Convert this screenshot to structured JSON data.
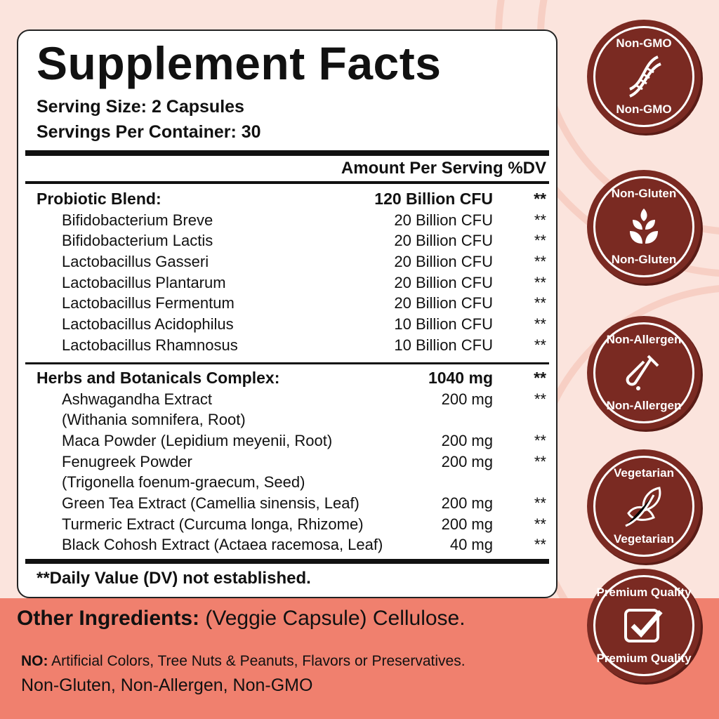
{
  "title": "Supplement Facts",
  "serving_size": "Serving Size: 2 Capsules",
  "servings_per_container": "Servings Per Container: 30",
  "header": {
    "amount": "Amount Per Serving",
    "dv": "%DV"
  },
  "probiotic": [
    {
      "name": "Probiotic Blend:",
      "amount": "120 Billion CFU",
      "dv": "**",
      "bold": true
    },
    {
      "name": "Bifidobacterium Breve",
      "amount": "20 Billion CFU",
      "dv": "**"
    },
    {
      "name": "Bifidobacterium Lactis",
      "amount": "20 Billion CFU",
      "dv": "**"
    },
    {
      "name": "Lactobacillus Gasseri",
      "amount": "20 Billion CFU",
      "dv": "**"
    },
    {
      "name": "Lactobacillus Plantarum",
      "amount": "20 Billion CFU",
      "dv": "**"
    },
    {
      "name": "Lactobacillus Fermentum",
      "amount": "20 Billion CFU",
      "dv": "**"
    },
    {
      "name": "Lactobacillus Acidophilus",
      "amount": "10 Billion CFU",
      "dv": "**"
    },
    {
      "name": "Lactobacillus Rhamnosus",
      "amount": "10 Billion CFU",
      "dv": "**"
    }
  ],
  "herbs": [
    {
      "name": "Herbs and Botanicals Complex:",
      "amount": "1040 mg",
      "dv": "**",
      "bold": true
    },
    {
      "name": "Ashwagandha Extract",
      "amount": "200 mg",
      "dv": "**"
    },
    {
      "name": "(Withania somnifera, Root)",
      "amount": "",
      "dv": ""
    },
    {
      "name": "Maca Powder (Lepidium meyenii, Root)",
      "amount": "200 mg",
      "dv": "**"
    },
    {
      "name": "Fenugreek Powder",
      "amount": "200 mg",
      "dv": "**"
    },
    {
      "name": "(Trigonella foenum-graecum, Seed)",
      "amount": "",
      "dv": ""
    },
    {
      "name": "Green Tea Extract (Camellia sinensis, Leaf)",
      "amount": "200 mg",
      "dv": "**"
    },
    {
      "name": "Turmeric Extract (Curcuma longa, Rhizome)",
      "amount": "200 mg",
      "dv": "**"
    },
    {
      "name": "Black Cohosh Extract (Actaea racemosa, Leaf)",
      "amount": "40 mg",
      "dv": "**"
    }
  ],
  "footnote": "**Daily Value (DV) not established.",
  "other_ingredients": {
    "label": "Other Ingredients:",
    "value": " (Veggie Capsule) Cellulose."
  },
  "no_list": {
    "label": "NO:",
    "value": " Artificial Colors, Tree Nuts & Peanuts, Flavors or Preservatives."
  },
  "claims": "Non-Gluten, Non-Allergen, Non-GMO",
  "badges": [
    {
      "label": "Non-GMO",
      "icon": "dna-icon"
    },
    {
      "label": "Non-Gluten",
      "icon": "wheat-icon"
    },
    {
      "label": "Non-Allergen",
      "icon": "test-tube-icon"
    },
    {
      "label": "Vegetarian",
      "icon": "leaf-icon"
    },
    {
      "label": "Premium Quality",
      "icon": "checkmark-icon"
    }
  ],
  "colors": {
    "badge": "#7a2a22",
    "band": "#f0806e",
    "background": "#fbe4dd"
  }
}
